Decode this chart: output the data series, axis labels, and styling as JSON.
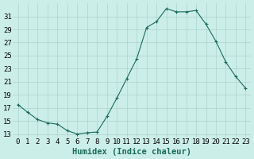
{
  "x": [
    0,
    1,
    2,
    3,
    4,
    5,
    6,
    7,
    8,
    9,
    10,
    11,
    12,
    13,
    14,
    15,
    16,
    17,
    18,
    19,
    20,
    21,
    22,
    23
  ],
  "y": [
    17.5,
    16.3,
    15.2,
    14.7,
    14.5,
    13.5,
    13.0,
    13.2,
    13.3,
    15.7,
    18.5,
    21.5,
    24.5,
    29.3,
    30.2,
    32.2,
    31.7,
    31.7,
    31.9,
    29.8,
    27.2,
    24.0,
    21.8,
    20.0
  ],
  "line_color": "#1a6b5a",
  "marker": "+",
  "marker_size": 3,
  "marker_lw": 0.8,
  "line_width": 0.8,
  "bg_color": "#cceee8",
  "grid_color": "#aad4cc",
  "xlabel": "Humidex (Indice chaleur)",
  "xlim": [
    -0.5,
    23.5
  ],
  "ylim": [
    12.5,
    33.0
  ],
  "yticks": [
    13,
    15,
    17,
    19,
    21,
    23,
    25,
    27,
    29,
    31
  ],
  "tick_fontsize": 6.5,
  "xlabel_fontsize": 7.5
}
